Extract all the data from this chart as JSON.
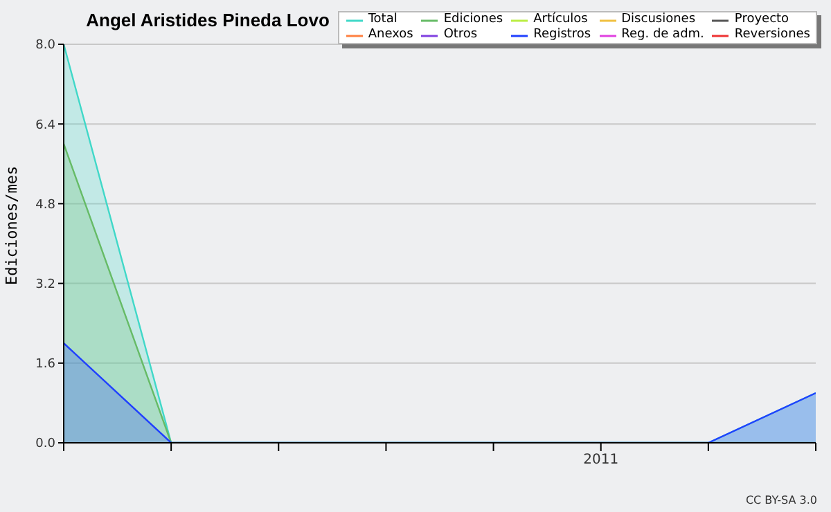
{
  "chart_data": {
    "type": "area",
    "title": "Angel Aristides Pineda Lovo",
    "ylabel": "Ediciones/mes",
    "categories": [
      null,
      null,
      null,
      null,
      null,
      "2011",
      null,
      null
    ],
    "series": [
      {
        "name": "Total",
        "color": "#40d8c8",
        "values": [
          8,
          0,
          0,
          0,
          0,
          0,
          0,
          1
        ]
      },
      {
        "name": "Ediciones",
        "color": "#66bb66",
        "values": [
          6,
          0,
          0,
          0,
          0,
          0,
          0,
          0
        ]
      },
      {
        "name": "Artículos",
        "color": "#bbee44",
        "values": [
          null,
          null,
          null,
          null,
          null,
          null,
          null,
          null
        ]
      },
      {
        "name": "Discusiones",
        "color": "#f0c040",
        "values": [
          null,
          null,
          null,
          null,
          null,
          null,
          null,
          null
        ]
      },
      {
        "name": "Proyecto",
        "color": "#555555",
        "values": [
          null,
          null,
          null,
          null,
          null,
          null,
          null,
          null
        ]
      },
      {
        "name": "Anexos",
        "color": "#ff8040",
        "values": [
          null,
          null,
          null,
          null,
          null,
          null,
          null,
          null
        ]
      },
      {
        "name": "Otros",
        "color": "#8040e0",
        "values": [
          null,
          null,
          null,
          null,
          null,
          null,
          null,
          null
        ]
      },
      {
        "name": "Registros",
        "color": "#2040ff",
        "values": [
          2,
          0,
          0,
          0,
          0,
          0,
          0,
          1
        ]
      },
      {
        "name": "Reg. de adm.",
        "color": "#e040e0",
        "values": [
          null,
          null,
          null,
          null,
          null,
          null,
          null,
          null
        ]
      },
      {
        "name": "Reversiones",
        "color": "#ee3333",
        "values": [
          null,
          null,
          null,
          null,
          null,
          null,
          null,
          null
        ]
      }
    ],
    "ylim": [
      0,
      8
    ],
    "yticks": [
      {
        "value": 0,
        "label": "0.0"
      },
      1.6,
      3.2,
      4.8,
      6.4,
      {
        "value": 8,
        "label": "8.0"
      }
    ],
    "grid": "y",
    "legend": "top right",
    "annotations": [
      "CC BY-SA 3.0"
    ]
  }
}
